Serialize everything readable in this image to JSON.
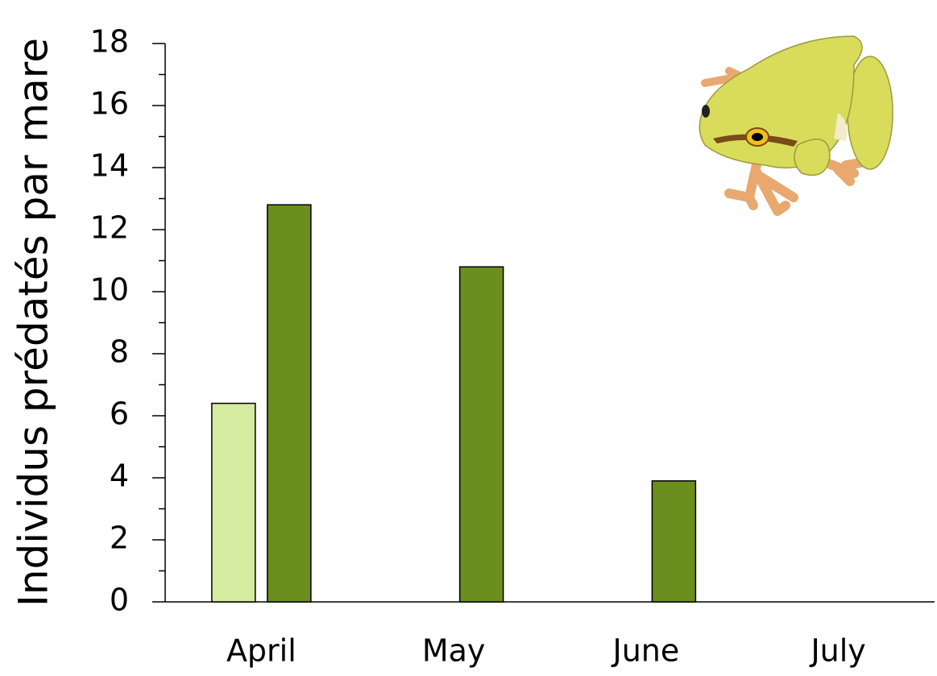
{
  "chart_data": {
    "type": "bar",
    "y_label": "Individus prédatés par mare",
    "categories": [
      "April",
      "May",
      "June",
      "July"
    ],
    "series": [
      {
        "color": "#d4eba0",
        "values": [
          6.4,
          null,
          null,
          null
        ]
      },
      {
        "color": "#6b8e1e",
        "values": [
          12.8,
          10.8,
          3.9,
          null
        ]
      }
    ],
    "ylim": [
      0,
      18
    ],
    "yticks": [
      0,
      2,
      4,
      6,
      8,
      10,
      12,
      14,
      16,
      18
    ],
    "grid": false
  }
}
